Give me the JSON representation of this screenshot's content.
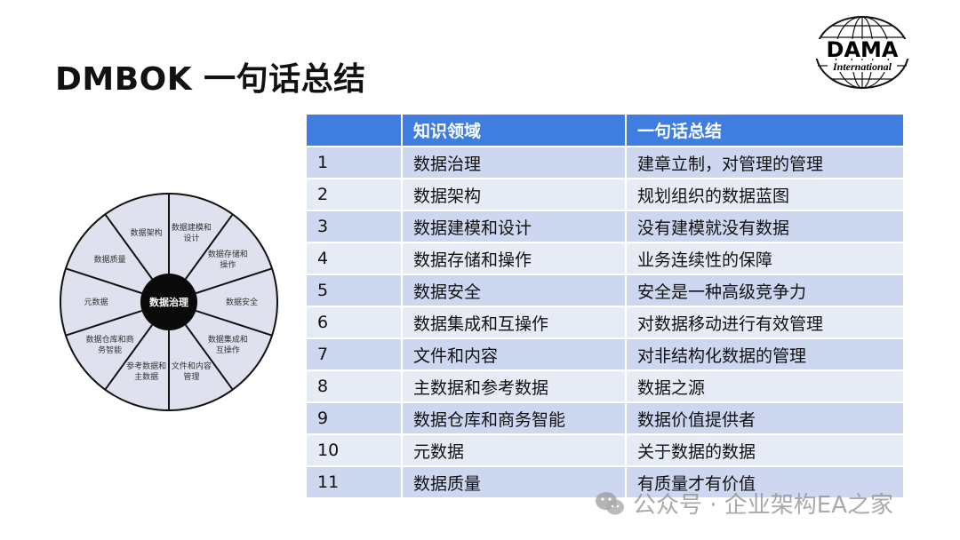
{
  "title": "DMBOK 一句话总结",
  "logo": {
    "text": "DAMA",
    "subtext": "International"
  },
  "wheel": {
    "center": "数据治理",
    "segments": [
      "数据建模和设计",
      "数据存储和操作",
      "数据安全",
      "数据集成和互操作",
      "文件和内容管理",
      "参考数据和主数据",
      "数据仓库和商务智能",
      "元数据",
      "数据质量",
      "数据架构"
    ]
  },
  "table": {
    "headers": [
      "",
      "知识领域",
      "一句话总结"
    ],
    "rows": [
      [
        "1",
        "数据治理",
        "建章立制，对管理的管理"
      ],
      [
        "2",
        "数据架构",
        "规划组织的数据蓝图"
      ],
      [
        "3",
        "数据建模和设计",
        "没有建模就没有数据"
      ],
      [
        "4",
        "数据存储和操作",
        "业务连续性的保障"
      ],
      [
        "5",
        "数据安全",
        "安全是一种高级竞争力"
      ],
      [
        "6",
        "数据集成和互操作",
        "对数据移动进行有效管理"
      ],
      [
        "7",
        "文件和内容",
        "对非结构化数据的管理"
      ],
      [
        "8",
        "主数据和参考数据",
        "数据之源"
      ],
      [
        "9",
        "数据仓库和商务智能",
        "数据价值提供者"
      ],
      [
        "10",
        "元数据",
        "关于数据的数据"
      ],
      [
        "11",
        "数据质量",
        "有质量才有价值"
      ]
    ]
  },
  "watermark": {
    "icon": "wechat-icon",
    "text": "公众号 · 企业架构EA之家"
  }
}
